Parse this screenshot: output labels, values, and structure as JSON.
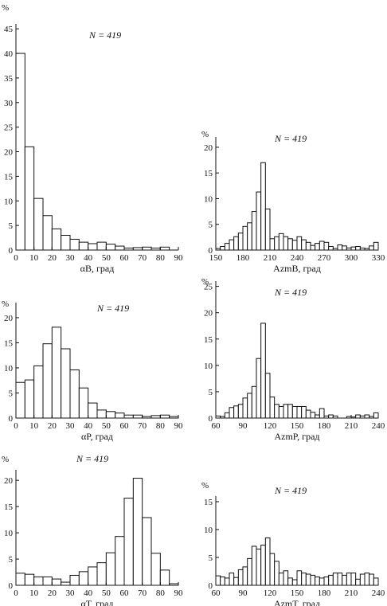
{
  "figure": {
    "percent_symbol": "%"
  },
  "chart_data": [
    {
      "id": "alphaB",
      "type": "bar",
      "n_label": "N = 419",
      "xlabel": "αB, град",
      "xlim": [
        0,
        90
      ],
      "ylim": [
        0,
        46
      ],
      "xticks": [
        0,
        10,
        20,
        30,
        40,
        50,
        60,
        70,
        80,
        90
      ],
      "yticks": [
        5,
        10,
        15,
        20,
        25,
        30,
        35,
        40,
        45
      ],
      "bin_width": 5,
      "bin_starts": [
        0,
        5,
        10,
        15,
        20,
        25,
        30,
        35,
        40,
        45,
        50,
        55,
        60,
        65,
        70,
        75,
        80,
        85
      ],
      "values": [
        40,
        21,
        10.5,
        7,
        4.3,
        3,
        2.2,
        1.6,
        1.3,
        1.6,
        1.2,
        0.8,
        0.4,
        0.5,
        0.6,
        0.4,
        0.6,
        0
      ]
    },
    {
      "id": "azmB",
      "type": "bar",
      "n_label": "N = 419",
      "xlabel": "AzmB, град",
      "xlim": [
        150,
        330
      ],
      "ylim": [
        0,
        22
      ],
      "xticks": [
        150,
        180,
        210,
        240,
        270,
        300,
        330
      ],
      "yticks": [
        5,
        10,
        15,
        20
      ],
      "bin_width": 5,
      "bin_starts": [
        150,
        155,
        160,
        165,
        170,
        175,
        180,
        185,
        190,
        195,
        200,
        205,
        210,
        215,
        220,
        225,
        230,
        235,
        240,
        245,
        250,
        255,
        260,
        265,
        270,
        275,
        280,
        285,
        290,
        295,
        300,
        305,
        310,
        315,
        320,
        325
      ],
      "values": [
        0.3,
        0.7,
        1.3,
        2,
        2.6,
        3.3,
        4.6,
        5.3,
        7.5,
        11.3,
        17,
        8,
        2.2,
        2.6,
        3.2,
        2.6,
        2.2,
        1.9,
        2.6,
        2,
        1.5,
        0.9,
        1.3,
        1.7,
        1.5,
        0.7,
        0.3,
        1,
        0.8,
        0.4,
        0.6,
        0.7,
        0.4,
        0.3,
        0.8,
        1.5
      ]
    },
    {
      "id": "alphaP",
      "type": "bar",
      "n_label": "N = 419",
      "xlabel": "αP, град",
      "xlim": [
        0,
        90
      ],
      "ylim": [
        0,
        23
      ],
      "xticks": [
        0,
        10,
        20,
        30,
        40,
        50,
        60,
        70,
        80,
        90
      ],
      "yticks": [
        5,
        10,
        15,
        20
      ],
      "bin_width": 5,
      "bin_starts": [
        0,
        5,
        10,
        15,
        20,
        25,
        30,
        35,
        40,
        45,
        50,
        55,
        60,
        65,
        70,
        75,
        80,
        85
      ],
      "values": [
        7.1,
        7.6,
        10.4,
        14.8,
        18.1,
        13.8,
        9.6,
        6,
        3,
        1.6,
        1.3,
        1,
        0.6,
        0.6,
        0.3,
        0.5,
        0.6,
        0.3
      ]
    },
    {
      "id": "azmP",
      "type": "bar",
      "n_label": "N = 419",
      "xlabel": "AzmP, град",
      "xlim": [
        60,
        240
      ],
      "ylim": [
        0,
        26
      ],
      "xticks": [
        60,
        90,
        120,
        150,
        180,
        210,
        240
      ],
      "yticks": [
        5,
        10,
        15,
        20,
        25
      ],
      "bin_width": 5,
      "bin_starts": [
        60,
        65,
        70,
        75,
        80,
        85,
        90,
        95,
        100,
        105,
        110,
        115,
        120,
        125,
        130,
        135,
        140,
        145,
        150,
        155,
        160,
        165,
        170,
        175,
        180,
        185,
        190,
        195,
        200,
        205,
        210,
        215,
        220,
        225,
        230,
        235
      ],
      "values": [
        0.4,
        0.3,
        1,
        2,
        2.3,
        2.6,
        3.8,
        4.7,
        6,
        11.3,
        18,
        8.5,
        4,
        2.6,
        2.2,
        2.6,
        2.6,
        2.2,
        2.2,
        2.2,
        1.5,
        1.1,
        0.6,
        1.8,
        0.4,
        0.6,
        0.4,
        0,
        0,
        0.3,
        0.2,
        0.6,
        0.4,
        0.6,
        0.3,
        1
      ]
    },
    {
      "id": "alphaT",
      "type": "bar",
      "n_label": "N = 419",
      "xlabel": "αT, град",
      "xlim": [
        0,
        90
      ],
      "ylim": [
        0,
        22
      ],
      "xticks": [
        0,
        10,
        20,
        30,
        40,
        50,
        60,
        70,
        80,
        90
      ],
      "yticks": [
        5,
        10,
        15,
        20
      ],
      "bin_width": 5,
      "bin_starts": [
        0,
        5,
        10,
        15,
        20,
        25,
        30,
        35,
        40,
        45,
        50,
        55,
        60,
        65,
        70,
        75,
        80,
        85
      ],
      "values": [
        2.3,
        2.1,
        1.6,
        1.6,
        1.2,
        0.6,
        1.9,
        2.6,
        3.5,
        4.3,
        6.2,
        9.3,
        16.6,
        20.4,
        12.9,
        6.1,
        2.9,
        0.3
      ]
    },
    {
      "id": "azmT",
      "type": "bar",
      "n_label": "N = 419",
      "xlabel": "AzmT, град",
      "xlim": [
        60,
        240
      ],
      "ylim": [
        0,
        16
      ],
      "xticks": [
        60,
        90,
        120,
        150,
        180,
        210,
        240
      ],
      "yticks": [
        5,
        10,
        15
      ],
      "bin_width": 5,
      "bin_starts": [
        60,
        65,
        70,
        75,
        80,
        85,
        90,
        95,
        100,
        105,
        110,
        115,
        120,
        125,
        130,
        135,
        140,
        145,
        150,
        155,
        160,
        165,
        170,
        175,
        180,
        185,
        190,
        195,
        200,
        205,
        210,
        215,
        220,
        225,
        230,
        235
      ],
      "values": [
        1.7,
        1.5,
        1.3,
        2.2,
        1.4,
        2.8,
        3.3,
        4.8,
        7,
        6.5,
        7.2,
        8.5,
        5.7,
        4.3,
        2.2,
        2.6,
        1.3,
        1,
        2.6,
        2.2,
        2,
        1.8,
        1.5,
        1.3,
        1.5,
        1.8,
        2.2,
        2.2,
        1.8,
        2.2,
        2.2,
        1.1,
        2,
        2.2,
        2,
        1.3
      ]
    }
  ]
}
